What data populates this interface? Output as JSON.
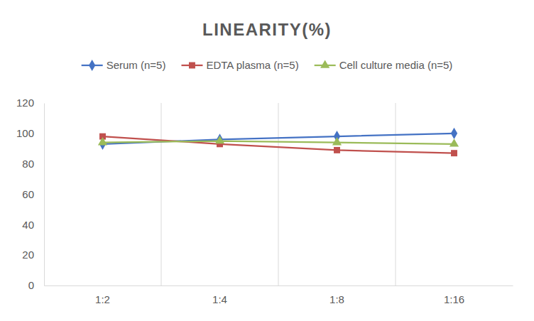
{
  "chart_data": {
    "type": "line",
    "title": "LINEARITY(%)",
    "categories": [
      "1:2",
      "1:4",
      "1:8",
      "1:16"
    ],
    "series": [
      {
        "name": "Serum (n=5)",
        "color": "#4472c4",
        "marker": "diamond",
        "values": [
          93,
          96,
          98,
          100
        ]
      },
      {
        "name": "EDTA plasma (n=5)",
        "color": "#c0504d",
        "marker": "square",
        "values": [
          98,
          93,
          89,
          87
        ]
      },
      {
        "name": "Cell culture media (n=5)",
        "color": "#9bbb59",
        "marker": "triangle",
        "values": [
          94,
          95,
          94,
          93
        ]
      }
    ],
    "ylim": [
      0,
      120
    ],
    "yticks": [
      0,
      20,
      40,
      60,
      80,
      100,
      120
    ],
    "grid": true,
    "legend": "top"
  }
}
